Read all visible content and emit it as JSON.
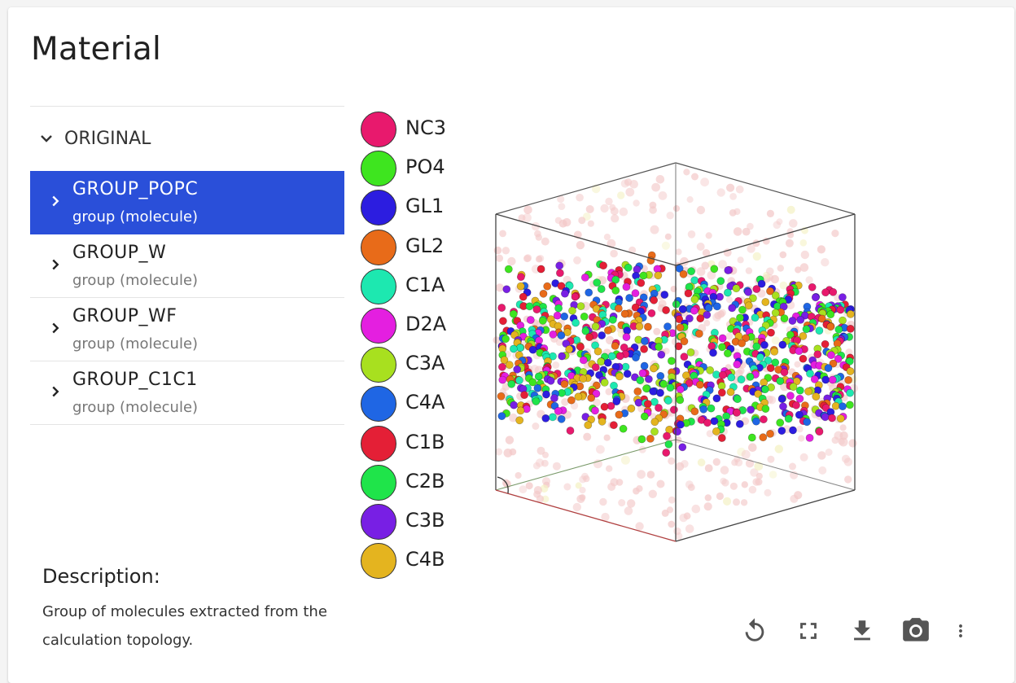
{
  "card": {
    "title": "Material"
  },
  "tree": {
    "root_label": "ORIGINAL",
    "items": [
      {
        "name": "GROUP_POPC",
        "subtitle": "group (molecule)",
        "selected": true
      },
      {
        "name": "GROUP_W",
        "subtitle": "group (molecule)",
        "selected": false
      },
      {
        "name": "GROUP_WF",
        "subtitle": "group (molecule)",
        "selected": false
      },
      {
        "name": "GROUP_C1C1",
        "subtitle": "group (molecule)",
        "selected": false
      }
    ]
  },
  "description": {
    "heading": "Description:",
    "text": "Group of molecules extracted from the calculation topology."
  },
  "legend": [
    {
      "label": "NC3",
      "color": "#e8196d"
    },
    {
      "label": "PO4",
      "color": "#3ee51f"
    },
    {
      "label": "GL1",
      "color": "#2c1de0"
    },
    {
      "label": "GL2",
      "color": "#e86b19"
    },
    {
      "label": "C1A",
      "color": "#1de8b0"
    },
    {
      "label": "D2A",
      "color": "#e41fe0"
    },
    {
      "label": "C3A",
      "color": "#a8e01f"
    },
    {
      "label": "C4A",
      "color": "#1f66e4"
    },
    {
      "label": "C1B",
      "color": "#e41f36"
    },
    {
      "label": "C2B",
      "color": "#1fe44a"
    },
    {
      "label": "C3B",
      "color": "#781fe4"
    },
    {
      "label": "C4B",
      "color": "#e4b41f"
    }
  ],
  "toolbar": {
    "icons": [
      "reset-view-icon",
      "fullscreen-icon",
      "download-icon",
      "camera-icon",
      "more-vert-icon"
    ]
  },
  "colors": {
    "selected_bg": "#2a4fd9",
    "water_particle": "#f3c8c8",
    "box_edge": "#333333"
  }
}
